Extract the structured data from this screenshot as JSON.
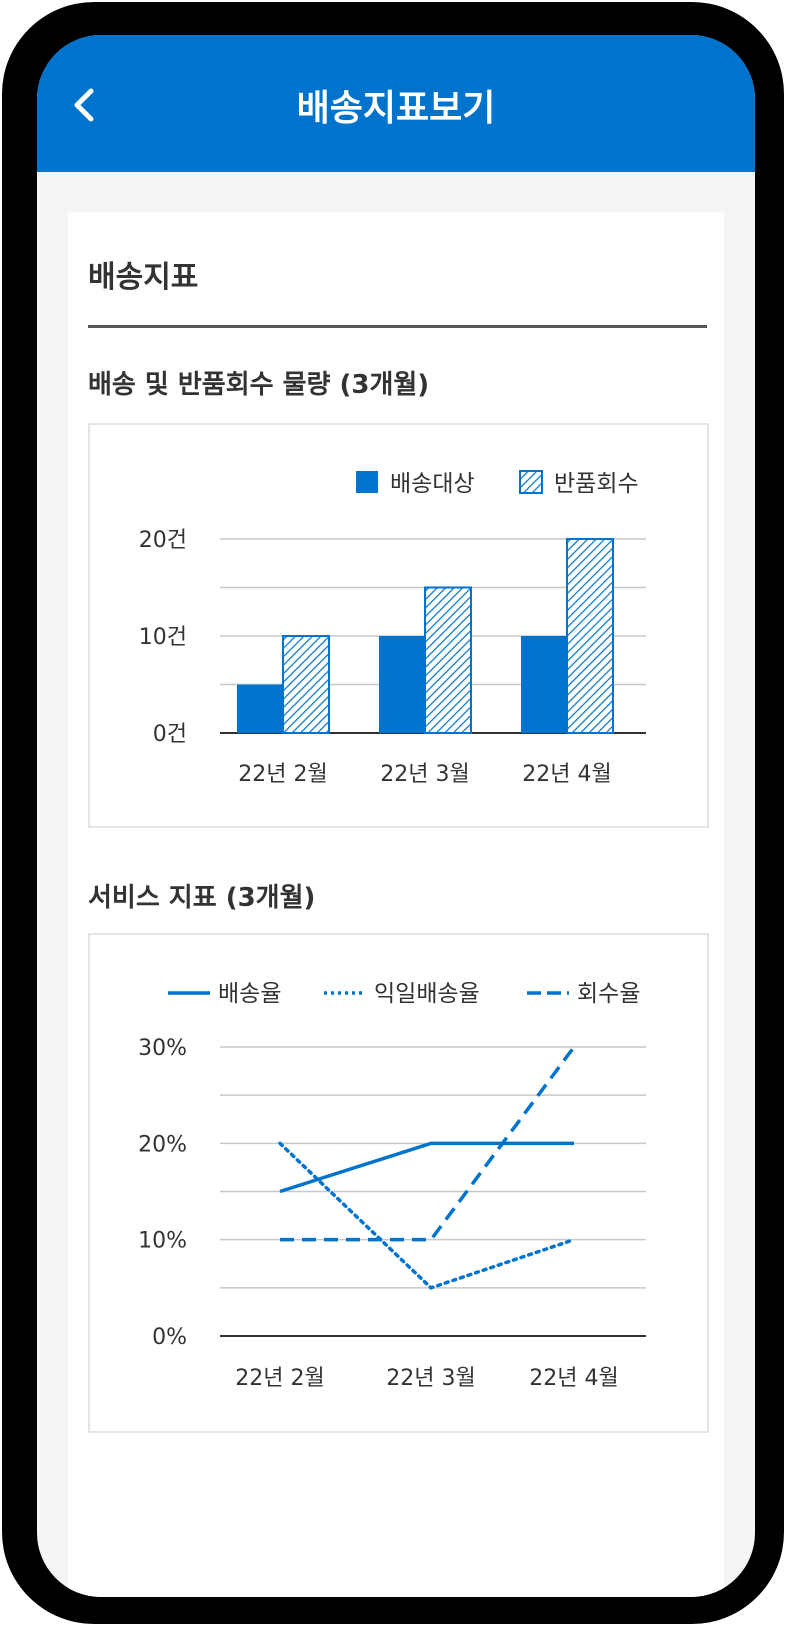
{
  "header": {
    "title": "배송지표보기",
    "back_icon": "chevron-left-icon"
  },
  "colors": {
    "primary": "#0073cd",
    "bar": "#0073cd",
    "grid": "#c8c8c8",
    "axis": "#333333"
  },
  "section": {
    "title": "배송지표"
  },
  "charts": {
    "volume_title": "배송 및 반품회수 물량 (3개월)",
    "service_title": "서비스 지표 (3개월)"
  },
  "chart_data": [
    {
      "type": "bar",
      "title": "배송 및 반품회수 물량 (3개월)",
      "categories": [
        "22년 2월",
        "22년 3월",
        "22년 4월"
      ],
      "series": [
        {
          "name": "배송대상",
          "values": [
            5,
            10,
            10
          ],
          "style": "solid"
        },
        {
          "name": "반품회수",
          "values": [
            10,
            15,
            20
          ],
          "style": "hatched"
        }
      ],
      "yticks": [
        {
          "value": 0,
          "label": "0건"
        },
        {
          "value": 10,
          "label": "10건"
        },
        {
          "value": 20,
          "label": "20건"
        }
      ],
      "ylim": [
        0,
        20
      ],
      "grid": true,
      "legend": "top-right"
    },
    {
      "type": "line",
      "title": "서비스 지표 (3개월)",
      "categories": [
        "22년 2월",
        "22년 3월",
        "22년 4월"
      ],
      "series": [
        {
          "name": "배송율",
          "values": [
            15,
            20,
            20
          ],
          "style": "solid"
        },
        {
          "name": "익일배송율",
          "values": [
            20,
            5,
            10
          ],
          "style": "dotted"
        },
        {
          "name": "회수율",
          "values": [
            10,
            10,
            30
          ],
          "style": "dashed"
        }
      ],
      "yticks": [
        {
          "value": 0,
          "label": "0%"
        },
        {
          "value": 10,
          "label": "10%"
        },
        {
          "value": 20,
          "label": "20%"
        },
        {
          "value": 30,
          "label": "30%"
        }
      ],
      "ylim": [
        0,
        30
      ],
      "grid": true,
      "legend": "top"
    }
  ]
}
